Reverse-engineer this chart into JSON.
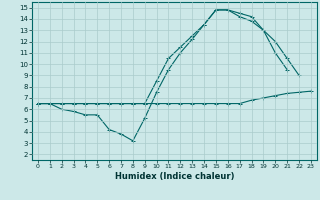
{
  "title": "",
  "xlabel": "Humidex (Indice chaleur)",
  "bg_color": "#cce8e8",
  "grid_color": "#aacccc",
  "line_color": "#006666",
  "xlim": [
    -0.5,
    23.5
  ],
  "ylim": [
    1.5,
    15.5
  ],
  "xticks": [
    0,
    1,
    2,
    3,
    4,
    5,
    6,
    7,
    8,
    9,
    10,
    11,
    12,
    13,
    14,
    15,
    16,
    17,
    18,
    19,
    20,
    21,
    22,
    23
  ],
  "yticks": [
    2,
    3,
    4,
    5,
    6,
    7,
    8,
    9,
    10,
    11,
    12,
    13,
    14,
    15
  ],
  "line1_x": [
    0,
    1,
    2,
    3,
    4,
    5,
    6,
    7,
    8,
    9,
    10,
    11,
    12,
    13,
    14,
    15,
    16,
    17,
    18,
    19,
    20,
    21,
    22,
    23
  ],
  "line1_y": [
    6.5,
    6.5,
    6.5,
    6.5,
    6.5,
    6.5,
    6.5,
    6.5,
    6.5,
    6.5,
    6.5,
    6.5,
    6.5,
    6.5,
    6.5,
    6.5,
    6.5,
    6.5,
    6.8,
    7.0,
    7.2,
    7.4,
    7.5,
    7.6
  ],
  "line2_x": [
    0,
    1,
    2,
    3,
    4,
    5,
    6,
    7,
    8,
    9,
    10,
    11,
    12,
    13,
    14,
    15,
    16,
    17,
    18,
    19,
    20,
    21
  ],
  "line2_y": [
    6.5,
    6.5,
    6.0,
    5.8,
    5.5,
    5.5,
    4.2,
    3.8,
    3.2,
    5.2,
    7.5,
    9.5,
    11.0,
    12.2,
    13.5,
    14.8,
    14.8,
    14.5,
    14.2,
    13.0,
    11.0,
    9.5
  ],
  "line3_x": [
    0,
    1,
    2,
    3,
    4,
    5,
    6,
    7,
    8,
    9,
    10,
    11,
    12,
    13,
    14,
    15,
    16,
    17,
    18,
    19,
    20,
    21,
    22
  ],
  "line3_y": [
    6.5,
    6.5,
    6.5,
    6.5,
    6.5,
    6.5,
    6.5,
    6.5,
    6.5,
    6.5,
    8.5,
    10.5,
    11.5,
    12.5,
    13.5,
    14.8,
    14.8,
    14.2,
    13.8,
    13.0,
    12.0,
    10.5,
    9.0
  ]
}
